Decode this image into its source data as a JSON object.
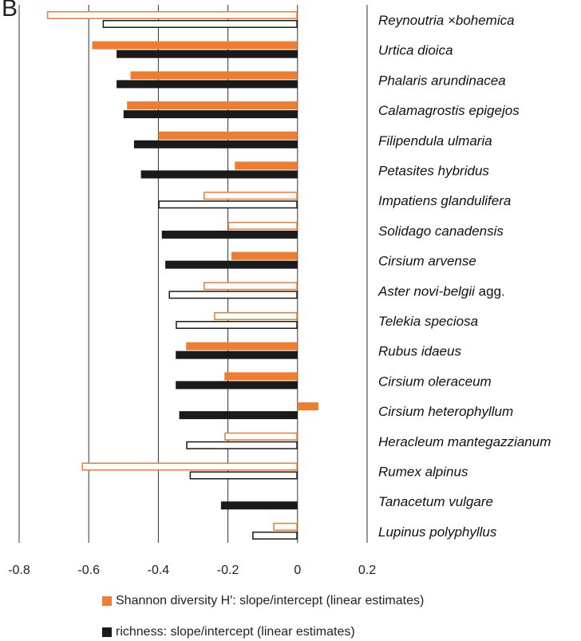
{
  "panel_label": "B",
  "colors": {
    "shannon": "#ED7D31",
    "richness": "#1A1A1A",
    "axis": "#333333"
  },
  "chart_data": {
    "type": "bar",
    "orientation": "horizontal",
    "title": "",
    "xlabel": "",
    "ylabel": "",
    "xlim": [
      -0.8,
      0.2
    ],
    "xticks": [
      -0.8,
      -0.6,
      -0.4,
      -0.2,
      0,
      0.2
    ],
    "xtick_labels": [
      "-0.8",
      "-0.6",
      "-0.4",
      "-0.2",
      "0",
      "0.2"
    ],
    "grid": "vertical",
    "legend_position": "bottom",
    "note": "Hollow bars are drawn as outlines (non-significant estimates); filled bars are solid.",
    "categories": [
      "Reynoutria ×bohemica",
      "Urtica dioica",
      "Phalaris arundinacea",
      "Calamagrostis epigejos",
      "Filipendula ulmaria",
      "Petasites hybridus",
      "Impatiens glandulifera",
      "Solidago canadensis",
      "Cirsium arvense",
      "Aster novi-belgii agg.",
      "Telekia speciosa",
      "Rubus idaeus",
      "Cirsium oleraceum",
      "Cirsium heterophyllum",
      "Heracleum mantegazzianum",
      "Rumex alpinus",
      "Tanacetum vulgare",
      "Lupinus polyphyllus"
    ],
    "series": [
      {
        "name": "Shannon diversity H′: slope/intercept (linear estimates)",
        "values": [
          -0.72,
          -0.59,
          -0.48,
          -0.49,
          -0.4,
          -0.18,
          -0.27,
          -0.2,
          -0.19,
          -0.27,
          -0.24,
          -0.32,
          -0.21,
          0.06,
          -0.21,
          -0.62,
          null,
          -0.07
        ],
        "filled": [
          false,
          true,
          true,
          true,
          true,
          true,
          false,
          false,
          true,
          false,
          false,
          true,
          true,
          true,
          false,
          false,
          false,
          false
        ]
      },
      {
        "name": "richness: slope/intercept (linear estimates)",
        "values": [
          -0.56,
          -0.52,
          -0.52,
          -0.5,
          -0.47,
          -0.45,
          -0.4,
          -0.39,
          -0.38,
          -0.37,
          -0.35,
          -0.35,
          -0.35,
          -0.34,
          -0.32,
          -0.31,
          -0.22,
          -0.13
        ],
        "filled": [
          false,
          true,
          true,
          true,
          true,
          true,
          false,
          true,
          true,
          false,
          false,
          true,
          true,
          true,
          false,
          false,
          true,
          false
        ]
      }
    ]
  },
  "legend": {
    "shannon": "Shannon diversity H′: slope/intercept (linear estimates)",
    "richness": "richness: slope/intercept (linear estimates)"
  }
}
